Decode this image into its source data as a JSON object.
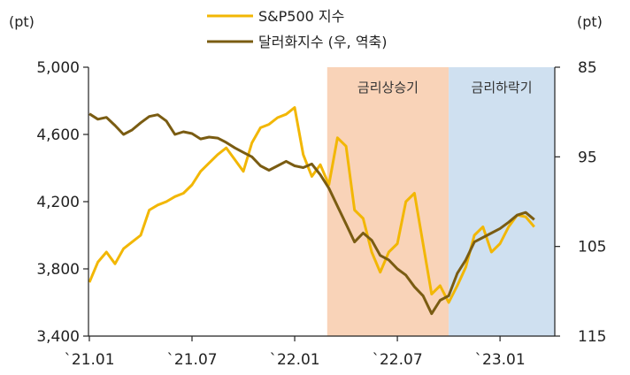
{
  "chart_data": {
    "type": "line",
    "left_unit": "(pt)",
    "right_unit": "(pt)",
    "y_left": {
      "min": 3400,
      "max": 5000,
      "ticks": [
        "3,400",
        "3,800",
        "4,200",
        "4,600",
        "5,000"
      ],
      "tick_values": [
        3400,
        3800,
        4200,
        4600,
        5000
      ]
    },
    "y_right": {
      "min": 85,
      "max": 115,
      "inverted": true,
      "ticks": [
        "85",
        "95",
        "105",
        "115"
      ],
      "tick_values": [
        85,
        95,
        105,
        115
      ]
    },
    "x": {
      "start": "2021-01",
      "end": "2023-03",
      "tick_labels": [
        "`21.01",
        "`21.07",
        "`22.01",
        "`22.07",
        "`23.01"
      ],
      "tick_months": [
        0,
        6,
        12,
        18,
        24
      ]
    },
    "bands": [
      {
        "label": "금리상승기",
        "from_month": 13.9,
        "to_month": 21.0,
        "color": "#f9d3b8"
      },
      {
        "label": "금리하락기",
        "from_month": 21.0,
        "to_month": 28.0,
        "color": "#cfe0f0"
      }
    ],
    "series": [
      {
        "name": "S&P500 지수",
        "axis": "left",
        "color": "#f2b705",
        "months": [
          0,
          0.5,
          1,
          1.5,
          2,
          2.5,
          3,
          3.5,
          4,
          4.5,
          5,
          5.5,
          6,
          6.5,
          7,
          7.5,
          8,
          8.5,
          9,
          9.5,
          10,
          10.5,
          11,
          11.5,
          12,
          12.5,
          13,
          13.5,
          14,
          14.5,
          15,
          15.5,
          16,
          16.5,
          17,
          17.5,
          18,
          18.5,
          19,
          19.5,
          20,
          20.5,
          21,
          21.5,
          22,
          22.5,
          23,
          23.5,
          24,
          24.5,
          25,
          25.5,
          26
        ],
        "values": [
          3720,
          3840,
          3900,
          3830,
          3920,
          3960,
          4000,
          4150,
          4180,
          4200,
          4230,
          4250,
          4300,
          4380,
          4430,
          4480,
          4520,
          4450,
          4380,
          4550,
          4640,
          4660,
          4700,
          4720,
          4760,
          4480,
          4350,
          4420,
          4300,
          4580,
          4530,
          4150,
          4100,
          3900,
          3780,
          3900,
          3950,
          4200,
          4250,
          3950,
          3650,
          3700,
          3600,
          3700,
          3810,
          4000,
          4050,
          3900,
          3950,
          4050,
          4120,
          4110,
          4050
        ]
      },
      {
        "name": "달러화지수 (우, 역축)",
        "axis": "right",
        "color": "#7a5c12",
        "months": [
          0,
          0.5,
          1,
          1.5,
          2,
          2.5,
          3,
          3.5,
          4,
          4.5,
          5,
          5.5,
          6,
          6.5,
          7,
          7.5,
          8,
          8.5,
          9,
          9.5,
          10,
          10.5,
          11,
          11.5,
          12,
          12.5,
          13,
          13.5,
          14,
          14.5,
          15,
          15.5,
          16,
          16.5,
          17,
          17.5,
          18,
          18.5,
          19,
          19.5,
          20,
          20.5,
          21,
          21.5,
          22,
          22.5,
          23,
          23.5,
          24,
          24.5,
          25,
          25.5,
          26
        ],
        "values": [
          90.2,
          90.8,
          90.6,
          91.5,
          92.5,
          92.0,
          91.2,
          90.5,
          90.3,
          91.0,
          92.5,
          92.2,
          92.4,
          93.0,
          92.8,
          92.9,
          93.4,
          94.0,
          94.5,
          95.0,
          96.0,
          96.5,
          96.0,
          95.5,
          96.0,
          96.2,
          95.8,
          97.0,
          98.5,
          100.5,
          102.5,
          104.5,
          103.5,
          104.3,
          106.0,
          106.5,
          107.5,
          108.2,
          109.5,
          110.5,
          112.5,
          111.0,
          110.5,
          108.0,
          106.5,
          104.5,
          104.0,
          103.5,
          103.0,
          102.3,
          101.5,
          101.2,
          102.0
        ]
      }
    ]
  }
}
